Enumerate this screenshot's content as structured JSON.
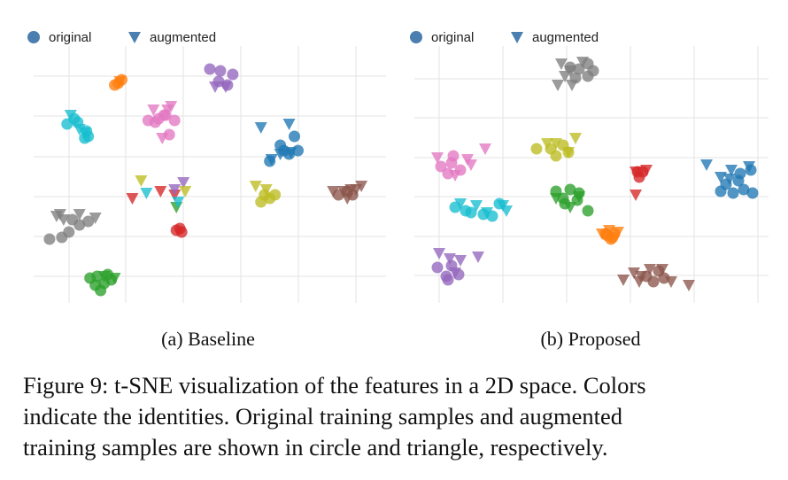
{
  "figure": {
    "caption_lines": [
      "Figure 9: t-SNE visualization of the features in a 2D space. Colors",
      "indicate the identities. Original training samples and augmented",
      "training samples are shown in circle and triangle, respectively."
    ]
  },
  "chart_data": [
    {
      "type": "scatter",
      "title": "",
      "subcaption": "(a) Baseline",
      "xlabel": "",
      "ylabel": "",
      "grid": true,
      "legend": {
        "placement": "top-left",
        "entries": [
          "original",
          "augmented"
        ]
      },
      "marker_legend": {
        "original": "circle",
        "augmented": "triangle"
      },
      "xlim": [
        0,
        400
      ],
      "ylim": [
        0,
        290
      ],
      "groups": [
        {
          "color": "#1f77b4",
          "original": [
            [
              268,
              160
            ],
            [
              280,
              178
            ],
            [
              290,
              168
            ],
            [
              300,
              172
            ],
            [
              284,
              172
            ],
            [
              296,
              188
            ]
          ],
          "augmented": [
            [
              258,
              198
            ],
            [
              290,
              202
            ],
            [
              270,
              162
            ],
            [
              280,
              168
            ],
            [
              292,
              170
            ]
          ]
        },
        {
          "color": "#ff7f0e",
          "original": [
            [
              96,
              248
            ],
            [
              100,
              252
            ],
            [
              92,
              246
            ]
          ],
          "augmented": [
            [
              98,
              250
            ]
          ]
        },
        {
          "color": "#2ca02c",
          "original": [
            [
              64,
              28
            ],
            [
              72,
              30
            ],
            [
              80,
              22
            ],
            [
              70,
              20
            ],
            [
              76,
              14
            ],
            [
              88,
              26
            ],
            [
              84,
              32
            ]
          ],
          "augmented": [
            [
              92,
              28
            ],
            [
              80,
              30
            ],
            [
              162,
              108
            ]
          ]
        },
        {
          "color": "#d62728",
          "original": [
            [
              162,
              82
            ],
            [
              166,
              84
            ],
            [
              168,
              80
            ]
          ],
          "augmented": [
            [
              112,
              118
            ],
            [
              160,
              122
            ],
            [
              144,
              126
            ]
          ]
        },
        {
          "color": "#9467bd",
          "original": [
            [
              200,
              264
            ],
            [
              212,
              262
            ],
            [
              226,
              258
            ],
            [
              210,
              250
            ],
            [
              220,
              246
            ]
          ],
          "augmented": [
            [
              206,
              244
            ],
            [
              218,
              244
            ],
            [
              160,
              128
            ],
            [
              170,
              136
            ]
          ]
        },
        {
          "color": "#8c564b",
          "original": [
            [
              346,
              122
            ],
            [
              356,
              126
            ],
            [
              362,
              122
            ]
          ],
          "augmented": [
            [
              340,
              126
            ],
            [
              352,
              126
            ],
            [
              366,
              128
            ],
            [
              372,
              132
            ],
            [
              356,
              118
            ],
            [
              360,
              128
            ]
          ]
        },
        {
          "color": "#e377c2",
          "original": [
            [
              130,
              206
            ],
            [
              142,
              208
            ],
            [
              150,
              212
            ],
            [
              160,
              206
            ],
            [
              154,
              190
            ],
            [
              138,
              204
            ],
            [
              148,
              212
            ]
          ],
          "augmented": [
            [
              146,
              186
            ],
            [
              136,
              218
            ],
            [
              152,
              218
            ],
            [
              156,
              222
            ]
          ]
        },
        {
          "color": "#7f7f7f",
          "original": [
            [
              18,
              72
            ],
            [
              32,
              74
            ],
            [
              40,
              80
            ],
            [
              52,
              88
            ],
            [
              62,
              92
            ],
            [
              44,
              94
            ]
          ],
          "augmented": [
            [
              26,
              98
            ],
            [
              34,
              94
            ],
            [
              52,
              100
            ],
            [
              70,
              96
            ],
            [
              30,
              100
            ]
          ]
        },
        {
          "color": "#bcbd22",
          "original": [
            [
              258,
              114
            ],
            [
              268,
              118
            ],
            [
              262,
              122
            ],
            [
              274,
              122
            ]
          ],
          "augmented": [
            [
              252,
              132
            ],
            [
              264,
              128
            ],
            [
              122,
              138
            ],
            [
              172,
              126
            ]
          ]
        },
        {
          "color": "#17becf",
          "original": [
            [
              38,
              202
            ],
            [
              50,
              204
            ],
            [
              60,
              194
            ],
            [
              58,
              186
            ],
            [
              46,
              208
            ],
            [
              62,
              188
            ]
          ],
          "augmented": [
            [
              42,
              212
            ],
            [
              52,
              196
            ],
            [
              58,
              192
            ],
            [
              128,
              124
            ],
            [
              164,
              114
            ]
          ]
        }
      ]
    },
    {
      "type": "scatter",
      "title": "",
      "subcaption": "(b) Proposed",
      "xlabel": "",
      "ylabel": "",
      "grid": true,
      "legend": {
        "placement": "top-left",
        "entries": [
          "original",
          "augmented"
        ]
      },
      "marker_legend": {
        "original": "circle",
        "augmented": "triangle"
      },
      "xlim": [
        0,
        400
      ],
      "ylim": [
        0,
        290
      ],
      "groups": [
        {
          "color": "#1f77b4",
          "original": [
            [
              352,
              134
            ],
            [
              366,
              138
            ],
            [
              380,
              150
            ],
            [
              368,
              146
            ],
            [
              360,
              124
            ],
            [
              372,
              128
            ],
            [
              346,
              126
            ],
            [
              382,
              124
            ]
          ],
          "augmented": [
            [
              330,
              156
            ],
            [
              346,
              142
            ],
            [
              358,
              150
            ],
            [
              378,
              154
            ],
            [
              356,
              140
            ]
          ]
        },
        {
          "color": "#ff7f0e",
          "original": [
            [
              218,
              76
            ],
            [
              224,
              74
            ],
            [
              226,
              78
            ],
            [
              216,
              78
            ],
            [
              222,
              72
            ]
          ],
          "augmented": [
            [
              212,
              78
            ],
            [
              230,
              80
            ],
            [
              220,
              82
            ]
          ]
        },
        {
          "color": "#2ca02c",
          "original": [
            [
              160,
              126
            ],
            [
              176,
              128
            ],
            [
              170,
              112
            ],
            [
              184,
              116
            ],
            [
              196,
              104
            ],
            [
              168,
              118
            ],
            [
              186,
              124
            ]
          ],
          "augmented": [
            [
              160,
              118
            ],
            [
              186,
              120
            ],
            [
              176,
              108
            ]
          ]
        },
        {
          "color": "#d62728",
          "original": [
            [
              252,
              148
            ],
            [
              258,
              148
            ],
            [
              254,
              142
            ]
          ],
          "augmented": [
            [
              250,
              148
            ],
            [
              262,
              150
            ],
            [
              250,
              122
            ]
          ]
        },
        {
          "color": "#9467bd",
          "original": [
            [
              26,
              40
            ],
            [
              38,
              26
            ],
            [
              50,
              32
            ],
            [
              42,
              42
            ],
            [
              36,
              30
            ]
          ],
          "augmented": [
            [
              28,
              56
            ],
            [
              40,
              50
            ],
            [
              52,
              48
            ],
            [
              72,
              52
            ],
            [
              46,
              34
            ]
          ]
        },
        {
          "color": "#8c564b",
          "original": [
            [
              262,
              30
            ],
            [
              276,
              36
            ],
            [
              270,
              24
            ],
            [
              282,
              28
            ]
          ],
          "augmented": [
            [
              236,
              26
            ],
            [
              248,
              34
            ],
            [
              256,
              30
            ],
            [
              266,
              38
            ],
            [
              280,
              38
            ],
            [
              290,
              24
            ],
            [
              310,
              20
            ],
            [
              254,
              24
            ]
          ]
        },
        {
          "color": "#e377c2",
          "original": [
            [
              30,
              154
            ],
            [
              44,
              166
            ],
            [
              52,
              150
            ],
            [
              38,
              146
            ],
            [
              42,
              158
            ]
          ],
          "augmented": [
            [
              26,
              164
            ],
            [
              46,
              144
            ],
            [
              60,
              162
            ],
            [
              64,
              156
            ],
            [
              80,
              174
            ]
          ]
        },
        {
          "color": "#7f7f7f",
          "original": [
            [
              176,
              266
            ],
            [
              186,
              264
            ],
            [
              196,
              270
            ],
            [
              202,
              262
            ],
            [
              182,
              254
            ],
            [
              196,
              256
            ]
          ],
          "augmented": [
            [
              166,
              270
            ],
            [
              176,
              262
            ],
            [
              162,
              246
            ],
            [
              178,
              246
            ],
            [
              190,
              272
            ],
            [
              170,
              256
            ]
          ]
        },
        {
          "color": "#bcbd22",
          "original": [
            [
              138,
              174
            ],
            [
              154,
              174
            ],
            [
              168,
              178
            ],
            [
              160,
              166
            ],
            [
              174,
              170
            ]
          ],
          "augmented": [
            [
              150,
              180
            ],
            [
              160,
              180
            ],
            [
              182,
              186
            ],
            [
              174,
              170
            ]
          ]
        },
        {
          "color": "#17becf",
          "original": [
            [
              46,
              108
            ],
            [
              58,
              104
            ],
            [
              64,
              102
            ],
            [
              78,
              100
            ],
            [
              88,
              98
            ],
            [
              96,
              112
            ]
          ],
          "augmented": [
            [
              52,
              112
            ],
            [
              70,
              110
            ],
            [
              82,
              102
            ],
            [
              100,
              110
            ],
            [
              104,
              104
            ]
          ]
        }
      ]
    }
  ]
}
